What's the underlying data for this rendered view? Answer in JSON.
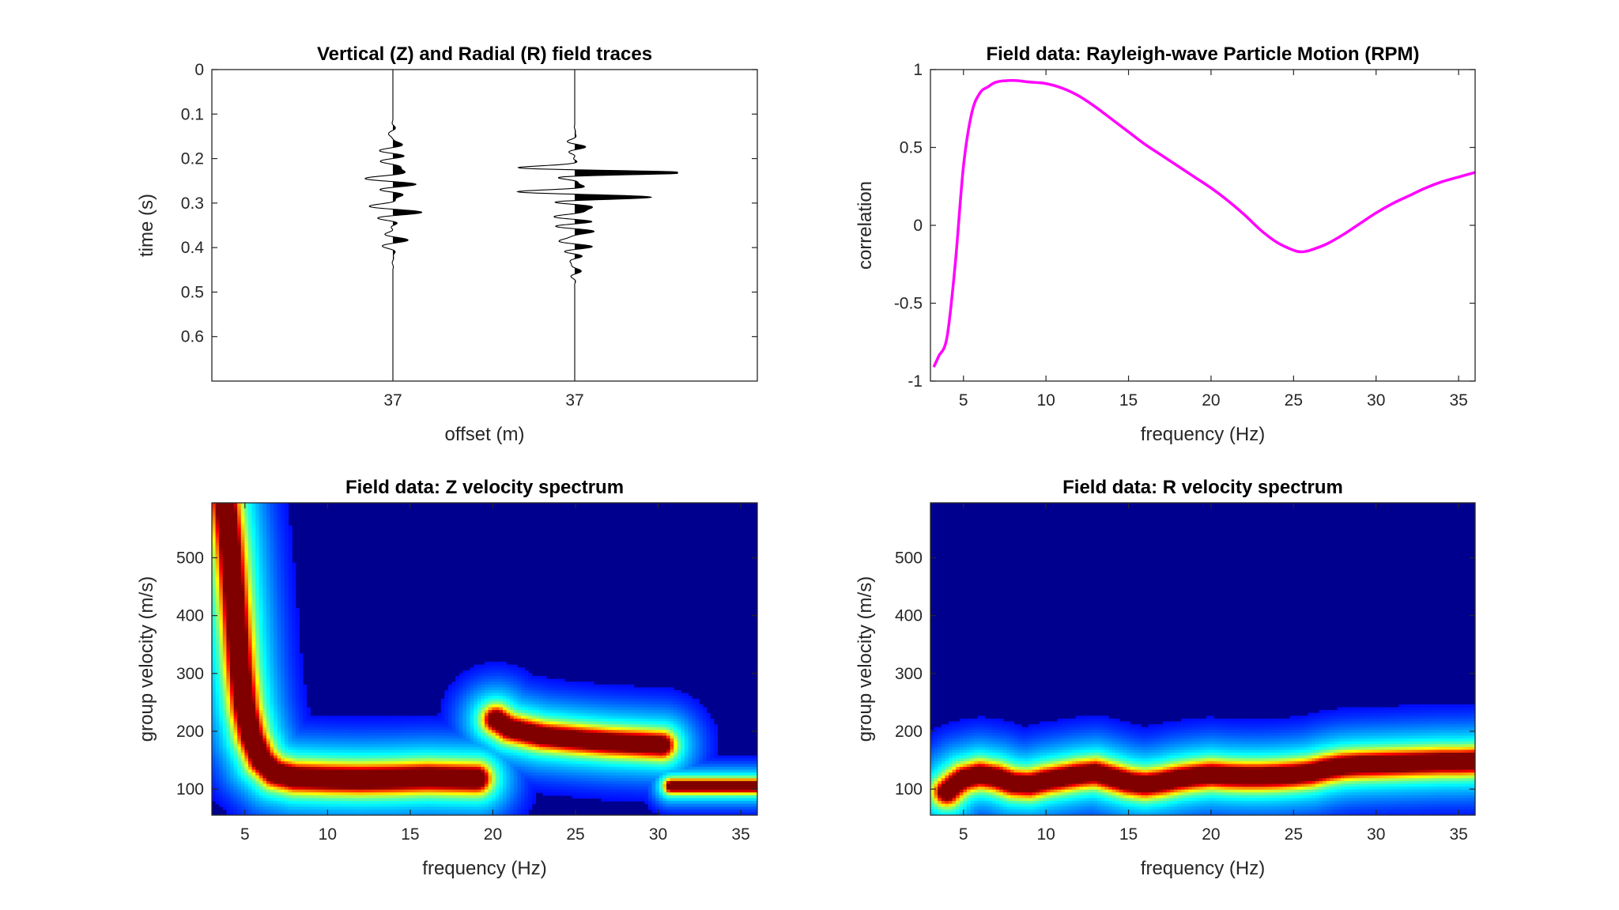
{
  "colors": {
    "rpm_line": "#ff00ff",
    "spectrum_background": "#00008f",
    "axis": "#262626"
  },
  "chart_data": [
    {
      "type": "line",
      "title": "Vertical (Z) and Radial (R) field traces",
      "xlabel": "offset (m)",
      "ylabel": "time (s)",
      "ylim": [
        0,
        0.7
      ],
      "y_reversed": true,
      "yticks": [
        "0",
        "0.1",
        "0.2",
        "0.3",
        "0.4",
        "0.5",
        "0.6"
      ],
      "xticks": [
        "37",
        "37"
      ],
      "grid": false,
      "series": [
        {
          "trace": 1,
          "signal_start": 0.11,
          "signal_end": 0.45,
          "max_deflection": 0.31
        },
        {
          "trace": 2,
          "signal_start": 0.12,
          "signal_end": 0.49,
          "max_deflection": 1.0
        }
      ]
    },
    {
      "type": "line",
      "title": "Field data: Rayleigh-wave Particle Motion (RPM)",
      "xlabel": "frequency (Hz)",
      "ylabel": "correlation",
      "xlim": [
        3,
        36
      ],
      "ylim": [
        -1,
        1
      ],
      "xticks": [
        "5",
        "10",
        "15",
        "20",
        "25",
        "30",
        "35"
      ],
      "yticks": [
        "-1",
        "-0.5",
        "0",
        "0.5",
        "1"
      ],
      "grid": false,
      "x": [
        3.2,
        3.5,
        4.0,
        4.5,
        5.0,
        5.5,
        6.0,
        6.5,
        7.0,
        8.0,
        9.0,
        10.0,
        11.0,
        12.0,
        13.0,
        14.0,
        15.0,
        16.0,
        17.0,
        18.0,
        19.0,
        20.0,
        21.0,
        22.0,
        23.0,
        24.0,
        25.0,
        25.5,
        26.0,
        27.0,
        28.0,
        29.0,
        30.0,
        31.0,
        32.0,
        33.0,
        34.0,
        35.0,
        36.0
      ],
      "y": [
        -0.91,
        -0.84,
        -0.72,
        -0.25,
        0.38,
        0.72,
        0.85,
        0.89,
        0.92,
        0.93,
        0.92,
        0.91,
        0.88,
        0.83,
        0.76,
        0.68,
        0.6,
        0.52,
        0.45,
        0.38,
        0.31,
        0.24,
        0.16,
        0.07,
        -0.03,
        -0.11,
        -0.16,
        -0.17,
        -0.16,
        -0.12,
        -0.06,
        0.01,
        0.08,
        0.14,
        0.19,
        0.24,
        0.28,
        0.31,
        0.34
      ]
    },
    {
      "type": "heatmap",
      "title": "Field data: Z velocity spectrum",
      "xlabel": "frequency (Hz)",
      "ylabel": "group velocity (m/s)",
      "xlim": [
        3,
        36
      ],
      "ylim": [
        55,
        595
      ],
      "xticks": [
        "5",
        "10",
        "15",
        "20",
        "25",
        "30",
        "35"
      ],
      "yticks": [
        "100",
        "200",
        "300",
        "400",
        "500"
      ],
      "colormap": "jet",
      "ridges": [
        {
          "x": [
            3.8,
            4.1,
            4.3,
            4.5,
            4.7,
            5.0,
            5.4,
            6.0,
            6.8,
            8.0,
            10.0,
            12.0,
            14.0,
            16.0,
            17.5,
            19.0
          ],
          "y": [
            595,
            520,
            450,
            380,
            310,
            240,
            190,
            150,
            128,
            120,
            118,
            117,
            118,
            120,
            119,
            118
          ],
          "width": 16,
          "strength": 1.0
        },
        {
          "x": [
            20.2,
            21.0,
            23.0,
            25.0,
            27.0,
            29.0,
            30.2
          ],
          "y": [
            220,
            205,
            192,
            186,
            181,
            178,
            176
          ],
          "width": 15,
          "strength": 0.95
        },
        {
          "x": [
            30.8,
            32.0,
            34.0,
            36.0
          ],
          "y": [
            105,
            105,
            105,
            105
          ],
          "width": 8,
          "strength": 0.95
        }
      ]
    },
    {
      "type": "heatmap",
      "title": "Field data: R velocity spectrum",
      "xlabel": "frequency (Hz)",
      "ylabel": "group velocity (m/s)",
      "xlim": [
        3,
        36
      ],
      "ylim": [
        55,
        595
      ],
      "xticks": [
        "5",
        "10",
        "15",
        "20",
        "25",
        "30",
        "35"
      ],
      "yticks": [
        "100",
        "200",
        "300",
        "400",
        "500"
      ],
      "colormap": "jet",
      "ridges": [
        {
          "x": [
            4.0,
            4.5,
            5.0,
            6.0,
            7.0,
            8.0,
            9.0,
            10.0,
            11.0,
            12.0,
            13.0,
            14.0,
            15.0,
            16.0,
            17.0,
            18.0,
            19.0,
            20.0,
            21.0,
            22.0,
            23.0,
            24.0,
            25.0,
            26.0,
            27.0,
            28.0,
            29.0,
            30.0,
            31.0,
            32.0,
            33.0,
            34.0,
            35.0,
            36.0
          ],
          "y": [
            95,
            108,
            118,
            125,
            120,
            110,
            108,
            115,
            120,
            125,
            128,
            120,
            112,
            108,
            112,
            118,
            122,
            125,
            123,
            122,
            122,
            123,
            125,
            128,
            135,
            140,
            142,
            143,
            144,
            145,
            146,
            147,
            147,
            148
          ],
          "width": 15,
          "strength": 0.95
        }
      ]
    }
  ]
}
